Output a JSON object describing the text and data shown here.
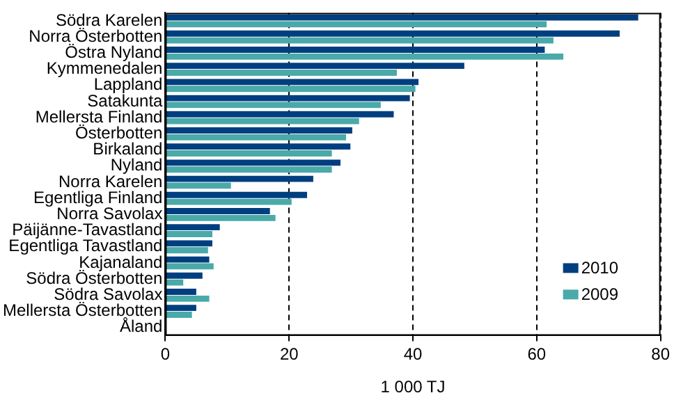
{
  "chart_data": {
    "type": "bar",
    "orientation": "horizontal",
    "xlabel": "1 000 TJ",
    "categories": [
      "Södra Karelen",
      "Norra Österbotten",
      "Östra Nyland",
      "Kymmenedalen",
      "Lappland",
      "Satakunta",
      "Mellersta Finland",
      "Österbotten",
      "Birkaland",
      "Nyland",
      "Norra Karelen",
      "Egentliga Finland",
      "Norra Savolax",
      "Päijänne-Tavastland",
      "Egentliga Tavastland",
      "Kajanaland",
      "Södra Österbotten",
      "Södra Savolax",
      "Mellersta Österbotten",
      "Åland"
    ],
    "series": [
      {
        "name": "2010",
        "color": "#003f7f",
        "values": [
          76.4,
          73.4,
          61.3,
          48.3,
          40.9,
          39.5,
          36.9,
          30.2,
          29.9,
          28.3,
          23.9,
          22.9,
          16.9,
          8.8,
          7.6,
          7.1,
          6.0,
          5.0,
          5.0,
          0
        ]
      },
      {
        "name": "2009",
        "color": "#4aa9a9",
        "values": [
          61.6,
          62.7,
          64.3,
          37.4,
          40.4,
          34.8,
          31.3,
          29.2,
          26.9,
          26.9,
          10.6,
          20.4,
          17.8,
          7.6,
          6.9,
          7.8,
          2.9,
          7.1,
          4.3,
          0
        ]
      }
    ],
    "xlim": [
      0,
      80
    ],
    "xticks": [
      0,
      20,
      40,
      60,
      80
    ],
    "grid": "x",
    "legend": "bottom right"
  }
}
